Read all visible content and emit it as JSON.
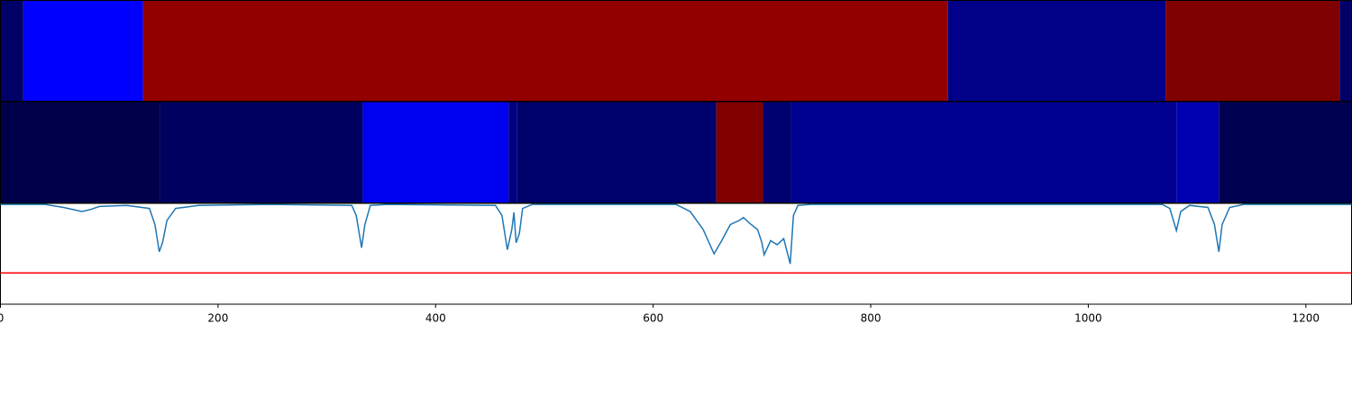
{
  "chart_data": {
    "type": "line",
    "xlim": [
      0,
      1242
    ],
    "xticks": [
      0,
      200,
      400,
      600,
      800,
      1000,
      1200
    ],
    "ylim": [
      0,
      1
    ],
    "strips": [
      {
        "segments": [
          {
            "start": 0,
            "end": 21,
            "color": "#000066"
          },
          {
            "start": 21,
            "end": 131,
            "color": "#0000ff"
          },
          {
            "start": 131,
            "end": 871,
            "color": "#930000"
          },
          {
            "start": 871,
            "end": 1071,
            "color": "#000088"
          },
          {
            "start": 1071,
            "end": 1231,
            "color": "#7f0000"
          },
          {
            "start": 1231,
            "end": 1242,
            "color": "#000066"
          }
        ]
      },
      {
        "segments": [
          {
            "start": 0,
            "end": 147,
            "color": "#00004a"
          },
          {
            "start": 147,
            "end": 333,
            "color": "#000060"
          },
          {
            "start": 333,
            "end": 467,
            "color": "#0000f0"
          },
          {
            "start": 467,
            "end": 475,
            "color": "#000080"
          },
          {
            "start": 475,
            "end": 658,
            "color": "#00006a"
          },
          {
            "start": 658,
            "end": 701,
            "color": "#800000"
          },
          {
            "start": 701,
            "end": 727,
            "color": "#000070"
          },
          {
            "start": 727,
            "end": 1081,
            "color": "#000090"
          },
          {
            "start": 1081,
            "end": 1120,
            "color": "#0000b0"
          },
          {
            "start": 1120,
            "end": 1242,
            "color": "#000050"
          }
        ]
      }
    ],
    "series": [
      {
        "color": "#1f77b4",
        "x": [
          0,
          41,
          58,
          75,
          83,
          91,
          116,
          137,
          142,
          146,
          149,
          153,
          161,
          182,
          248,
          323,
          327,
          332,
          335,
          340,
          356,
          455,
          461,
          466,
          470,
          472,
          474,
          477,
          480,
          489,
          621,
          634,
          646,
          656,
          663,
          671,
          679,
          683,
          689,
          696,
          700,
          702,
          708,
          714,
          720,
          726,
          729,
          733,
          745,
          1068,
          1075,
          1081,
          1085,
          1093,
          1110,
          1116,
          1120,
          1123,
          1130,
          1143,
          1242
        ],
        "values": [
          0.99,
          0.99,
          0.96,
          0.92,
          0.94,
          0.97,
          0.98,
          0.95,
          0.79,
          0.52,
          0.61,
          0.83,
          0.95,
          0.98,
          0.99,
          0.98,
          0.88,
          0.56,
          0.79,
          0.98,
          0.99,
          0.98,
          0.88,
          0.54,
          0.74,
          0.91,
          0.61,
          0.7,
          0.95,
          0.99,
          0.99,
          0.92,
          0.74,
          0.5,
          0.63,
          0.79,
          0.83,
          0.86,
          0.8,
          0.74,
          0.61,
          0.49,
          0.63,
          0.59,
          0.65,
          0.4,
          0.88,
          0.98,
          0.99,
          0.99,
          0.95,
          0.73,
          0.92,
          0.98,
          0.96,
          0.79,
          0.52,
          0.79,
          0.96,
          0.99,
          0.99
        ]
      }
    ],
    "threshold": {
      "value": 0.31,
      "color": "#ff0000"
    }
  }
}
